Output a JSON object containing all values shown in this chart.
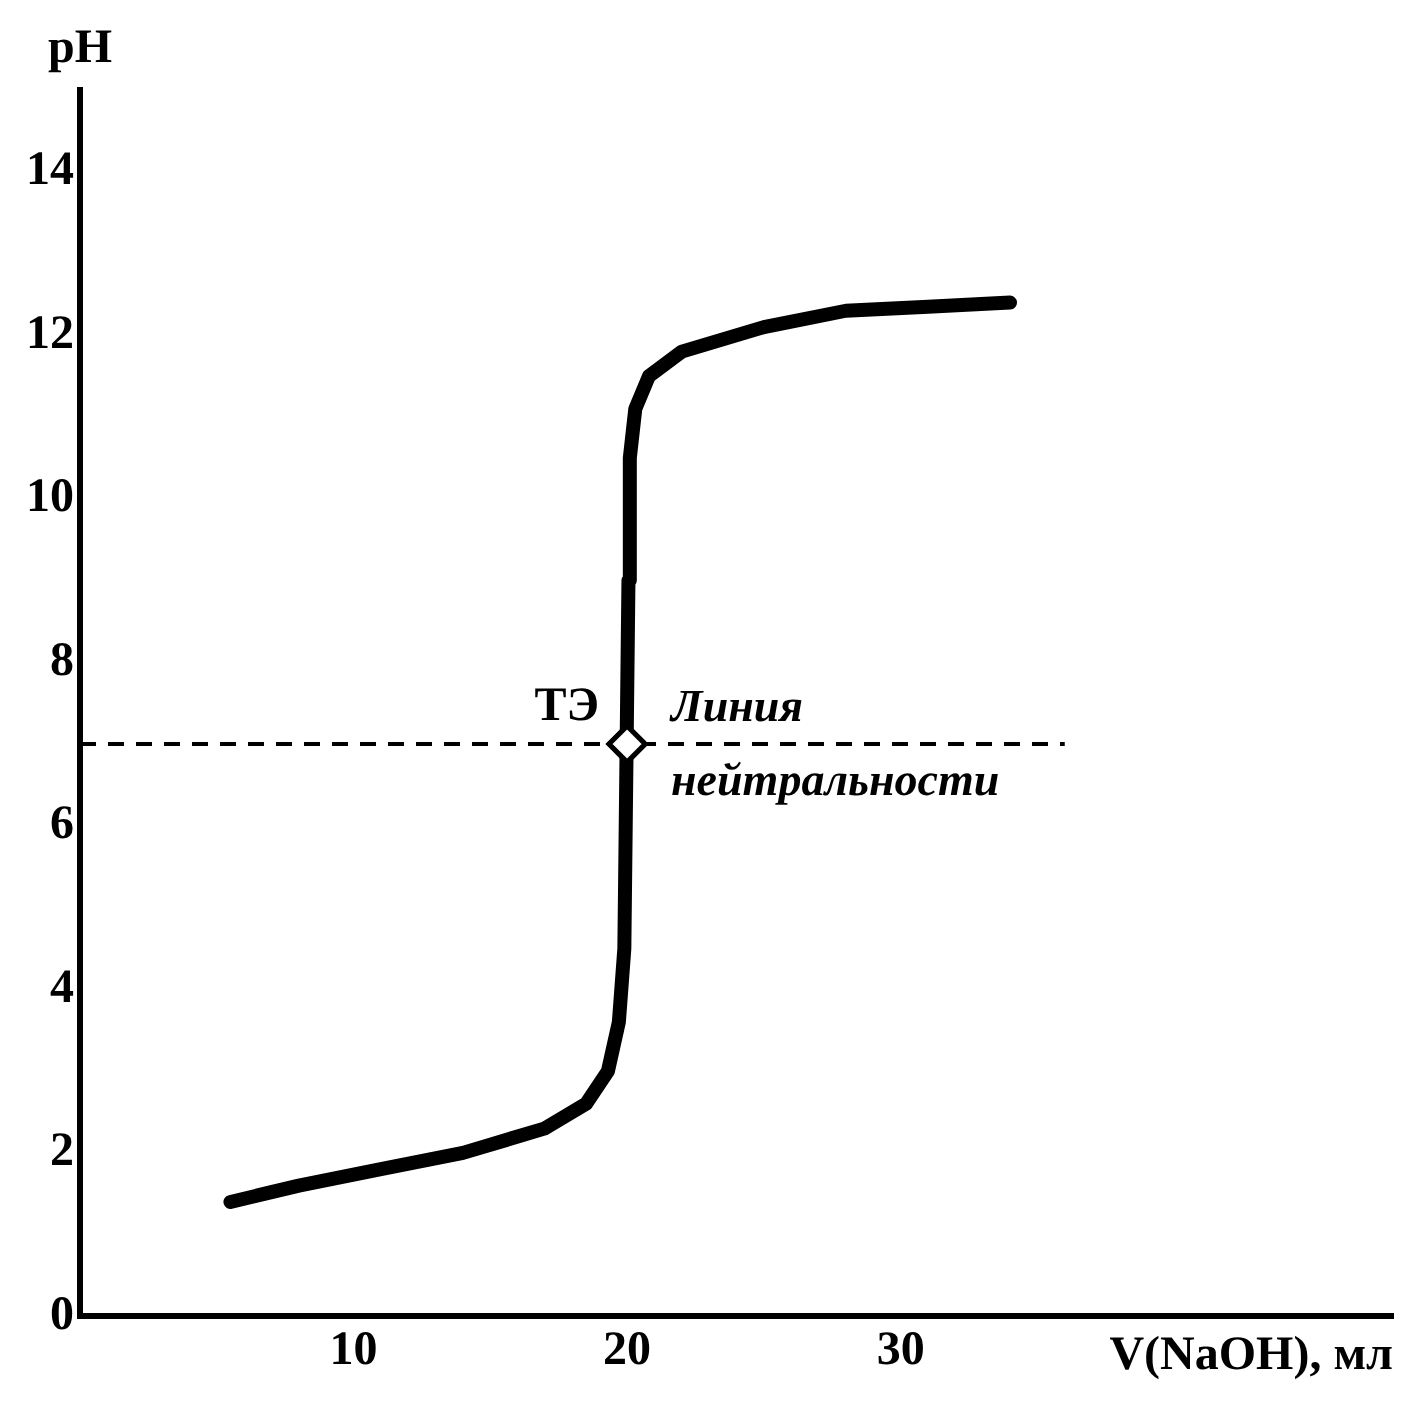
{
  "chart_data": {
    "type": "line",
    "xlabel": "V(NaOH), мл",
    "ylabel": "pH",
    "xlim": [
      0,
      48
    ],
    "ylim": [
      0,
      15
    ],
    "xticks": [
      10,
      20,
      30
    ],
    "yticks": [
      0,
      2,
      4,
      6,
      8,
      10,
      12,
      14
    ],
    "grid": false,
    "legend": false,
    "marker": "none",
    "series": [
      {
        "type": "line",
        "color": "#000000",
        "x": [
          5.5,
          8,
          11,
          14,
          17,
          18.5,
          19.3,
          19.7,
          19.9,
          20.05,
          20.1,
          20.3,
          20.8,
          22,
          25,
          28,
          31,
          34
        ],
        "values": [
          1.4,
          1.6,
          1.8,
          2.0,
          2.3,
          2.6,
          3.0,
          3.6,
          4.5,
          9,
          10.5,
          11.1,
          11.5,
          11.8,
          12.1,
          12.3,
          12.35,
          12.4
        ]
      },
      {
        "type": "scatter",
        "color": "#000000",
        "marker": "diamond",
        "x": [
          20
        ],
        "values": [
          7
        ]
      }
    ],
    "ref_lines": [
      {
        "axis": "y",
        "value": 7,
        "label": "Линия нейтральности",
        "line_style": "dashed",
        "color": "#000000"
      }
    ],
    "annotations": [
      {
        "text": "ТЭ",
        "x": 20,
        "y": 7
      }
    ]
  }
}
